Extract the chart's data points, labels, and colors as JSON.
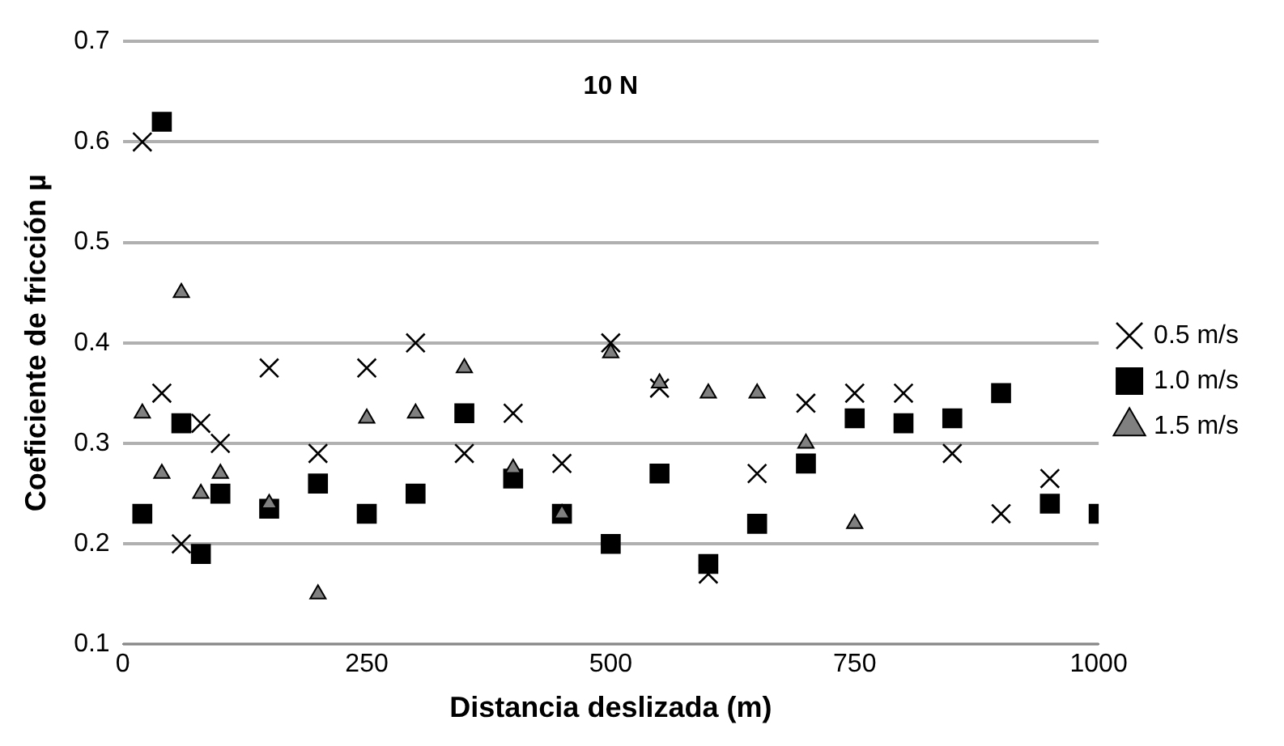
{
  "chart_data": {
    "type": "scatter",
    "title": "10 N",
    "xlabel": "Distancia deslizada (m)",
    "ylabel": "Coeficiente de fricción µ",
    "x": [
      20,
      40,
      60,
      80,
      100,
      150,
      200,
      250,
      300,
      350,
      400,
      450,
      500,
      550,
      600,
      650,
      700,
      750,
      800,
      850,
      900,
      950,
      1000
    ],
    "series": [
      {
        "name": "0.5 m/s",
        "color": "#000000",
        "marker": "cross",
        "values": [
          0.6,
          0.35,
          0.2,
          0.32,
          0.3,
          0.375,
          0.29,
          0.375,
          0.4,
          0.29,
          0.33,
          0.28,
          0.4,
          0.355,
          0.17,
          0.27,
          0.34,
          0.35,
          0.35,
          0.29,
          0.23,
          0.265,
          null
        ]
      },
      {
        "name": "1.0 m/s",
        "color": "#000000",
        "marker": "square",
        "values": [
          0.23,
          0.62,
          0.32,
          0.19,
          0.25,
          0.235,
          0.26,
          0.23,
          0.25,
          0.33,
          0.265,
          0.23,
          0.2,
          0.27,
          0.18,
          0.22,
          0.28,
          0.325,
          0.32,
          0.325,
          0.35,
          0.24,
          0.23
        ]
      },
      {
        "name": "1.5 m/s",
        "color": "#808080",
        "marker": "triangle",
        "values": [
          0.33,
          0.27,
          0.45,
          0.25,
          0.27,
          0.24,
          0.15,
          0.325,
          0.33,
          0.375,
          0.275,
          0.23,
          0.39,
          0.36,
          0.35,
          0.35,
          0.3,
          0.22,
          null,
          null,
          null,
          null,
          null
        ]
      }
    ],
    "xlim": [
      0,
      1000
    ],
    "xticks": [
      0,
      250,
      500,
      750,
      1000
    ],
    "ylim": [
      0.1,
      0.7
    ],
    "yticks": [
      0.1,
      0.2,
      0.3,
      0.4,
      0.5,
      0.6,
      0.7
    ],
    "grid": "y",
    "legend": "right"
  }
}
